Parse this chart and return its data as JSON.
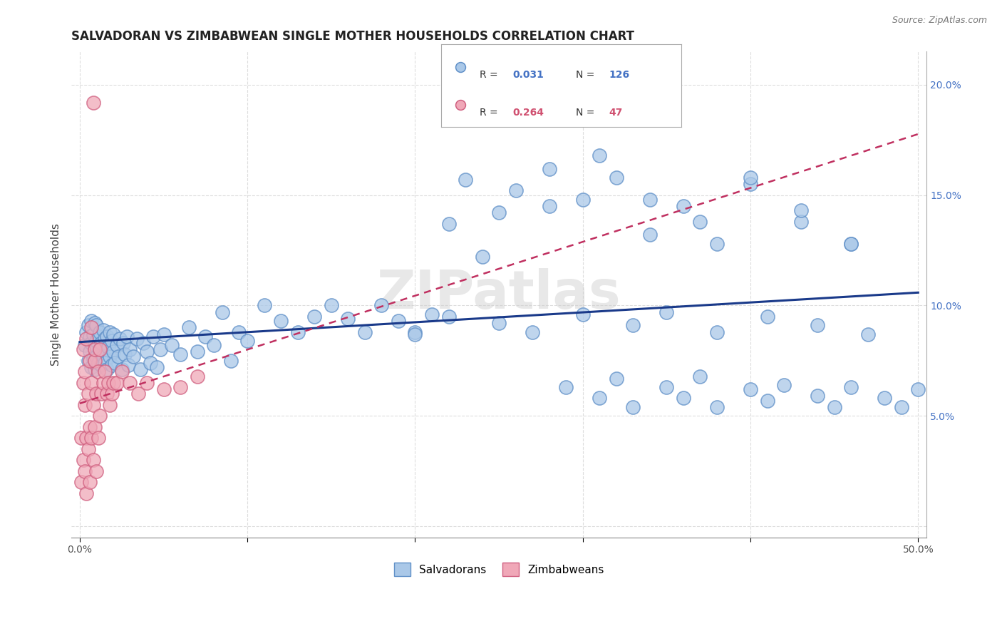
{
  "title": "SALVADORAN VS ZIMBABWEAN SINGLE MOTHER HOUSEHOLDS CORRELATION CHART",
  "source": "Source: ZipAtlas.com",
  "ylabel_label": "Single Mother Households",
  "xlim": [
    -0.005,
    0.505
  ],
  "ylim": [
    -0.005,
    0.215
  ],
  "salvadorans_R": 0.031,
  "salvadorans_N": 126,
  "zimbabweans_R": 0.264,
  "zimbabweans_N": 47,
  "sal_color": "#aac8e8",
  "sal_edge": "#6090c8",
  "zim_color": "#f0a8b8",
  "zim_edge": "#d06080",
  "trend_sal_color": "#1a3a8a",
  "trend_zim_color": "#c03060",
  "watermark": "ZIPatlas",
  "sal_x": [
    0.003,
    0.004,
    0.005,
    0.005,
    0.006,
    0.006,
    0.007,
    0.007,
    0.007,
    0.008,
    0.008,
    0.009,
    0.009,
    0.009,
    0.01,
    0.01,
    0.01,
    0.011,
    0.011,
    0.012,
    0.012,
    0.013,
    0.013,
    0.014,
    0.014,
    0.015,
    0.015,
    0.016,
    0.016,
    0.017,
    0.018,
    0.018,
    0.019,
    0.019,
    0.02,
    0.02,
    0.021,
    0.022,
    0.023,
    0.024,
    0.025,
    0.026,
    0.027,
    0.028,
    0.029,
    0.03,
    0.032,
    0.034,
    0.036,
    0.038,
    0.04,
    0.042,
    0.044,
    0.046,
    0.048,
    0.05,
    0.055,
    0.06,
    0.065,
    0.07,
    0.075,
    0.08,
    0.085,
    0.09,
    0.095,
    0.1,
    0.11,
    0.12,
    0.13,
    0.14,
    0.15,
    0.16,
    0.17,
    0.18,
    0.19,
    0.2,
    0.21,
    0.22,
    0.23,
    0.24,
    0.25,
    0.26,
    0.28,
    0.3,
    0.32,
    0.34,
    0.36,
    0.38,
    0.4,
    0.43,
    0.46,
    0.2,
    0.22,
    0.25,
    0.27,
    0.3,
    0.33,
    0.35,
    0.38,
    0.41,
    0.44,
    0.47,
    0.28,
    0.31,
    0.34,
    0.37,
    0.4,
    0.43,
    0.46,
    0.29,
    0.31,
    0.32,
    0.33,
    0.35,
    0.36,
    0.37,
    0.38,
    0.4,
    0.41,
    0.42,
    0.44,
    0.45,
    0.46,
    0.48,
    0.49,
    0.5
  ],
  "sal_y": [
    0.082,
    0.088,
    0.075,
    0.091,
    0.079,
    0.086,
    0.072,
    0.083,
    0.093,
    0.076,
    0.087,
    0.071,
    0.082,
    0.092,
    0.077,
    0.084,
    0.091,
    0.074,
    0.086,
    0.079,
    0.088,
    0.073,
    0.083,
    0.077,
    0.089,
    0.074,
    0.085,
    0.071,
    0.086,
    0.081,
    0.077,
    0.088,
    0.073,
    0.084,
    0.079,
    0.087,
    0.074,
    0.082,
    0.077,
    0.085,
    0.071,
    0.083,
    0.078,
    0.086,
    0.073,
    0.08,
    0.077,
    0.085,
    0.071,
    0.083,
    0.079,
    0.074,
    0.086,
    0.072,
    0.08,
    0.087,
    0.082,
    0.078,
    0.09,
    0.079,
    0.086,
    0.082,
    0.097,
    0.075,
    0.088,
    0.084,
    0.1,
    0.093,
    0.088,
    0.095,
    0.1,
    0.094,
    0.088,
    0.1,
    0.093,
    0.088,
    0.096,
    0.137,
    0.157,
    0.122,
    0.142,
    0.152,
    0.145,
    0.148,
    0.158,
    0.132,
    0.145,
    0.128,
    0.155,
    0.138,
    0.128,
    0.087,
    0.095,
    0.092,
    0.088,
    0.096,
    0.091,
    0.097,
    0.088,
    0.095,
    0.091,
    0.087,
    0.162,
    0.168,
    0.148,
    0.138,
    0.158,
    0.143,
    0.128,
    0.063,
    0.058,
    0.067,
    0.054,
    0.063,
    0.058,
    0.068,
    0.054,
    0.062,
    0.057,
    0.064,
    0.059,
    0.054,
    0.063,
    0.058,
    0.054,
    0.062
  ],
  "zim_x": [
    0.001,
    0.001,
    0.002,
    0.002,
    0.002,
    0.003,
    0.003,
    0.003,
    0.004,
    0.004,
    0.004,
    0.005,
    0.005,
    0.006,
    0.006,
    0.006,
    0.007,
    0.007,
    0.007,
    0.008,
    0.008,
    0.009,
    0.009,
    0.009,
    0.01,
    0.01,
    0.011,
    0.011,
    0.012,
    0.012,
    0.013,
    0.014,
    0.015,
    0.016,
    0.017,
    0.018,
    0.019,
    0.02,
    0.022,
    0.025,
    0.03,
    0.035,
    0.04,
    0.05,
    0.06,
    0.07,
    0.008
  ],
  "zim_y": [
    0.04,
    0.02,
    0.065,
    0.03,
    0.08,
    0.055,
    0.025,
    0.07,
    0.04,
    0.015,
    0.085,
    0.06,
    0.035,
    0.075,
    0.045,
    0.02,
    0.065,
    0.04,
    0.09,
    0.055,
    0.03,
    0.075,
    0.045,
    0.08,
    0.06,
    0.025,
    0.07,
    0.04,
    0.08,
    0.05,
    0.06,
    0.065,
    0.07,
    0.06,
    0.065,
    0.055,
    0.06,
    0.065,
    0.065,
    0.07,
    0.065,
    0.06,
    0.065,
    0.062,
    0.063,
    0.068,
    0.192
  ]
}
